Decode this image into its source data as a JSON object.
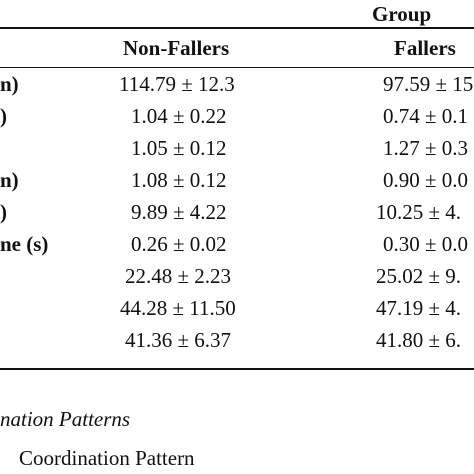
{
  "table": {
    "group_header": "Group",
    "columns": [
      "Non-Fallers",
      "Fallers"
    ],
    "rows": [
      {
        "label": "n)",
        "non_fallers": "114.79 ± 12.3",
        "fallers": "97.59 ± 15"
      },
      {
        "label": ")",
        "non_fallers": "1.04 ± 0.22",
        "fallers": "0.74 ± 0.1"
      },
      {
        "label": "",
        "non_fallers": "1.05 ± 0.12",
        "fallers": "1.27 ± 0.3"
      },
      {
        "label": "n)",
        "non_fallers": "1.08 ± 0.12",
        "fallers": "0.90 ± 0.0"
      },
      {
        "label": ")",
        "non_fallers": "9.89 ± 4.22",
        "fallers": "10.25 ± 4."
      },
      {
        "label": "ne (s)",
        "non_fallers": "0.26 ± 0.02",
        "fallers": "0.30 ± 0.0"
      },
      {
        "label": "",
        "non_fallers": "22.48 ± 2.23",
        "fallers": "25.02 ± 9."
      },
      {
        "label": "",
        "non_fallers": "44.28 ± 11.50",
        "fallers": "47.19 ± 4."
      },
      {
        "label": "",
        "non_fallers": "41.36 ± 6.37",
        "fallers": "41.80 ± 6."
      }
    ]
  },
  "captions": {
    "line1": "nation Patterns",
    "line2": "Coordination Pattern"
  }
}
